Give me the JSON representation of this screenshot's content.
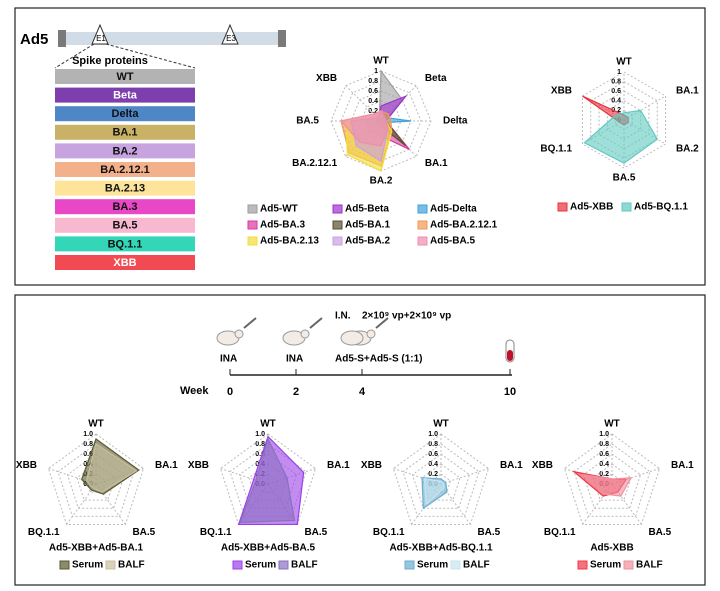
{
  "genome": {
    "label": "Ad5",
    "sites": [
      "E1",
      "E3"
    ],
    "list_title": "Spike proteins"
  },
  "spike_list": [
    {
      "label": "WT",
      "color": "#b3b3b3"
    },
    {
      "label": "Beta",
      "color": "#7d3fae"
    },
    {
      "label": "Delta",
      "color": "#4f86c6"
    },
    {
      "label": "BA.1",
      "color": "#c9b265"
    },
    {
      "label": "BA.2",
      "color": "#c7a3df"
    },
    {
      "label": "BA.2.12.1",
      "color": "#f2b08b"
    },
    {
      "label": "BA.2.13",
      "color": "#fde49a"
    },
    {
      "label": "BA.3",
      "color": "#e847c6"
    },
    {
      "label": "BA.5",
      "color": "#f6b9d0"
    },
    {
      "label": "BQ.1.1",
      "color": "#33d7b7"
    },
    {
      "label": "XBB",
      "color": "#f14a52"
    }
  ],
  "timeline": {
    "route": "I.N.",
    "dose": "2×10⁹ vp+2×10⁹ vp",
    "axis_label": "Week",
    "weeks": [
      "0",
      "2",
      "4",
      "10"
    ],
    "events": [
      "INA",
      "INA",
      "Ad5-S+Ad5-S (1:1)"
    ]
  },
  "chart_data": [
    {
      "type": "radar",
      "axes": [
        "WT",
        "Beta",
        "Delta",
        "BA.1",
        "BA.2",
        "BA.2.12.1",
        "BA.5",
        "XBB"
      ],
      "ylim": [
        0,
        1
      ],
      "yticks": [
        0,
        0.2,
        0.4,
        0.6,
        0.8,
        1
      ],
      "series": [
        {
          "name": "Ad5-WT",
          "color": "#9e9e9e",
          "values": [
            1,
            0.6,
            0.1,
            0.1,
            0.1,
            0.1,
            0.1,
            0.05
          ]
        },
        {
          "name": "Ad5-Beta",
          "color": "#a02fd0",
          "values": [
            0.3,
            0.7,
            0.1,
            0.1,
            0.1,
            0.1,
            0.1,
            0.05
          ]
        },
        {
          "name": "Ad5-Delta",
          "color": "#3fa2d8",
          "values": [
            0.1,
            0.1,
            0.6,
            0.05,
            0.1,
            0.1,
            0.1,
            0.05
          ]
        },
        {
          "name": "Ad5-BA.3",
          "color": "#d8389e",
          "values": [
            0.2,
            0.1,
            0.1,
            0.8,
            0.3,
            0.3,
            0.3,
            0.1
          ]
        },
        {
          "name": "Ad5-BA.1",
          "color": "#5a5030",
          "values": [
            0.1,
            0.1,
            0.1,
            0.7,
            0.1,
            0.1,
            0.1,
            0.05
          ]
        },
        {
          "name": "Ad5-BA.2.12.1",
          "color": "#f09a55",
          "values": [
            0.2,
            0.2,
            0.2,
            0.3,
            0.9,
            0.9,
            0.8,
            0.2
          ]
        },
        {
          "name": "Ad5-BA.2.13",
          "color": "#f2dc3a",
          "values": [
            0.2,
            0.1,
            0.1,
            0.3,
            1,
            0.95,
            0.7,
            0.1
          ]
        },
        {
          "name": "Ad5-BA.2",
          "color": "#c9a0e2",
          "values": [
            0.2,
            0.1,
            0.1,
            0.2,
            0.8,
            0.7,
            0.6,
            0.1
          ]
        },
        {
          "name": "Ad5-BA.5",
          "color": "#f08cb0",
          "values": [
            0.2,
            0.1,
            0.1,
            0.2,
            0.5,
            0.6,
            0.8,
            0.2
          ]
        }
      ]
    },
    {
      "type": "radar",
      "axes": [
        "WT",
        "BA.1",
        "BA.2",
        "BA.5",
        "BQ.1.1",
        "XBB"
      ],
      "ylim": [
        0,
        1
      ],
      "yticks": [
        0,
        0.2,
        0.4,
        0.6,
        0.8,
        1
      ],
      "series": [
        {
          "name": "Ad5-XBB",
          "color": "#e8323c",
          "values": [
            0.1,
            0.1,
            0.1,
            0.1,
            0.1,
            1
          ]
        },
        {
          "name": "Ad5-BQ.1.1",
          "color": "#5fc9c0",
          "values": [
            0.15,
            0.4,
            0.8,
            0.9,
            0.95,
            0.2
          ]
        }
      ]
    },
    {
      "type": "radar",
      "title": "Ad5-XBB+Ad5-BA.1",
      "axes": [
        "WT",
        "BA.1",
        "BA.5",
        "BQ.1.1",
        "XBB"
      ],
      "ylim": [
        0,
        1
      ],
      "yticks": [
        {
          "value": 0,
          "label": "0.0"
        },
        0.2,
        0.4,
        0.6,
        0.8,
        {
          "value": 1,
          "label": "1.0"
        }
      ],
      "series": [
        {
          "name": "Serum",
          "color": "#5a5a30",
          "values": [
            0.9,
            0.9,
            0.25,
            0.15,
            0.3
          ]
        },
        {
          "name": "BALF",
          "color": "#c8bf9c",
          "values": [
            0.8,
            0.85,
            0.2,
            0.1,
            0.2
          ]
        }
      ]
    },
    {
      "type": "radar",
      "title": "Ad5-XBB+Ad5-BA.5",
      "axes": [
        "WT",
        "BA.1",
        "BA.5",
        "BQ.1.1",
        "XBB"
      ],
      "ylim": [
        0,
        1
      ],
      "yticks": [
        {
          "value": 0,
          "label": "0.0"
        },
        0.2,
        0.4,
        0.6,
        0.8,
        {
          "value": 1,
          "label": "1.0"
        }
      ],
      "series": [
        {
          "name": "Serum",
          "color": "#9b40e8",
          "values": [
            0.95,
            0.75,
            1,
            1,
            0.3
          ]
        },
        {
          "name": "BALF",
          "color": "#8a70c0",
          "values": [
            0.9,
            0.4,
            0.9,
            0.95,
            0.25
          ]
        }
      ]
    },
    {
      "type": "radar",
      "title": "Ad5-XBB+Ad5-BQ.1.1",
      "axes": [
        "WT",
        "BA.1",
        "BA.5",
        "BQ.1.1",
        "XBB"
      ],
      "ylim": [
        0,
        1
      ],
      "yticks": [
        {
          "value": 0,
          "label": "0.0"
        },
        0.2,
        0.4,
        0.6,
        0.8,
        {
          "value": 1,
          "label": "1.0"
        }
      ],
      "series": [
        {
          "name": "Serum",
          "color": "#6aaed0",
          "values": [
            0.1,
            0.1,
            0.2,
            0.6,
            0.4
          ]
        },
        {
          "name": "BALF",
          "color": "#c8e4ee",
          "values": [
            0.05,
            0.05,
            0.1,
            0.5,
            0.35
          ]
        }
      ]
    },
    {
      "type": "radar",
      "title": "Ad5-XBB",
      "axes": [
        "WT",
        "BA.1",
        "BA.5",
        "BQ.1.1",
        "XBB"
      ],
      "ylim": [
        0,
        1
      ],
      "yticks": [
        {
          "value": 0,
          "label": "0.0"
        },
        0.2,
        0.4,
        0.6,
        0.8,
        {
          "value": 1,
          "label": "1.0"
        }
      ],
      "series": [
        {
          "name": "Serum",
          "color": "#f03848",
          "values": [
            0.1,
            0.3,
            0.2,
            0.3,
            0.8
          ]
        },
        {
          "name": "BALF",
          "color": "#f090a0",
          "values": [
            0.1,
            0.4,
            0.3,
            0.25,
            0.6
          ]
        }
      ]
    }
  ]
}
